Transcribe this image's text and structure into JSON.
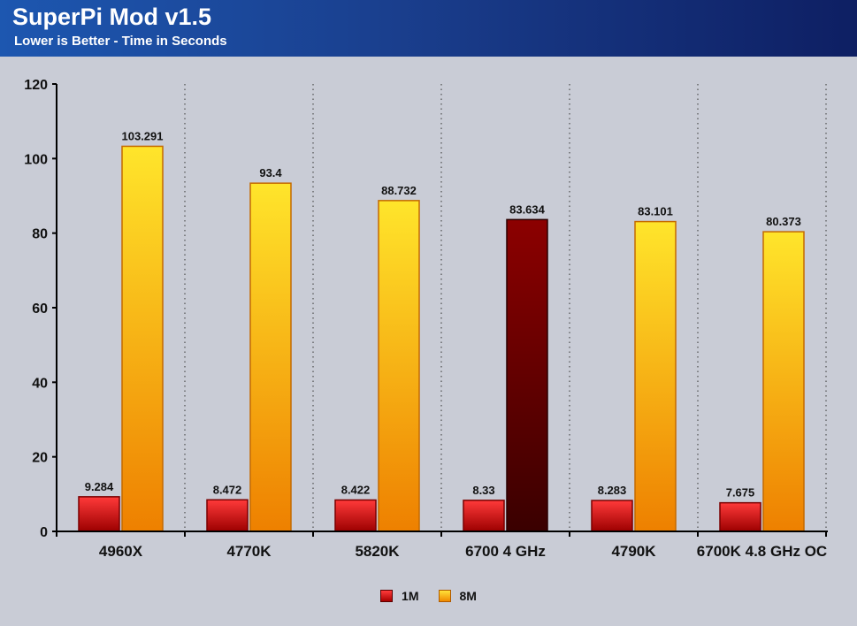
{
  "header": {
    "title": "SuperPi Mod v1.5",
    "subtitle": "Lower is Better - Time in Seconds"
  },
  "colors": {
    "series_1m_top": "#ff3232",
    "series_1m_bottom": "#a00000",
    "series_8m_top": "#ffe52b",
    "series_8m_bottom": "#ef8200",
    "highlight_top": "#8a0000",
    "highlight_bottom": "#3d0000"
  },
  "chart_data": {
    "type": "bar",
    "categories": [
      "4960X",
      "4770K",
      "5820K",
      "6700 4 GHz",
      "4790K",
      "6700K 4.8 GHz OC"
    ],
    "series": [
      {
        "name": "1M",
        "values": [
          9.284,
          8.472,
          8.422,
          8.33,
          8.283,
          7.675
        ]
      },
      {
        "name": "8M",
        "values": [
          103.291,
          93.4,
          88.732,
          83.634,
          83.101,
          80.373
        ]
      }
    ],
    "data_labels": [
      [
        "9.284",
        "8.472",
        "8.422",
        "8.33",
        "8.283",
        "7.675"
      ],
      [
        "103.291",
        "93.4",
        "88.732",
        "83.634",
        "83.101",
        "80.373"
      ]
    ],
    "highlighted": {
      "series": 1,
      "category": 3
    },
    "ylim": [
      0,
      120
    ],
    "yticks": [
      0,
      20,
      40,
      60,
      80,
      100,
      120
    ],
    "grid": "vertical dotted separators between categories",
    "legend_position": "bottom-center"
  },
  "legend": {
    "items": [
      {
        "label": "1M"
      },
      {
        "label": "8M"
      }
    ]
  }
}
